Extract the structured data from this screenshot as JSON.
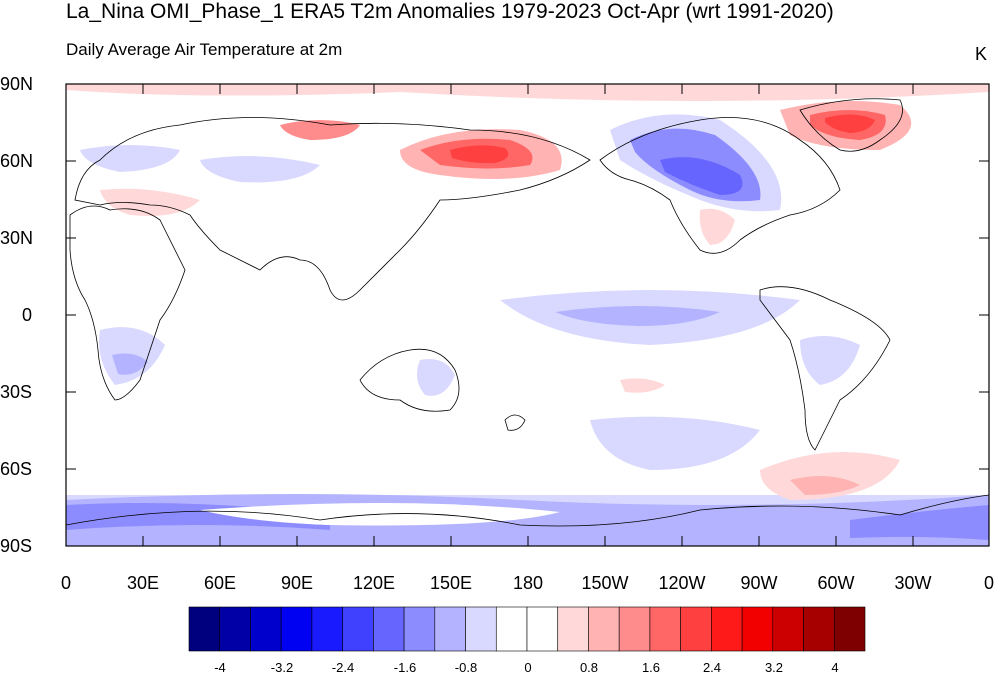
{
  "title": "La_Nina OMI_Phase_1 ERA5 T2m Anomalies 1979-2023 Oct-Apr (wrt 1991-2020)",
  "subtitle": "Daily Average Air Temperature at 2m",
  "units": "K",
  "lat_labels": [
    "90N",
    "60N",
    "30N",
    "0",
    "30S",
    "60S",
    "90S"
  ],
  "lon_labels": [
    "0",
    "30E",
    "60E",
    "90E",
    "120E",
    "150E",
    "180",
    "150W",
    "120W",
    "90W",
    "60W",
    "30W",
    "0"
  ],
  "colorbar": {
    "colors": [
      "#00007f",
      "#0000a6",
      "#0000cc",
      "#0000f2",
      "#1a1aff",
      "#4040ff",
      "#6666ff",
      "#8c8cff",
      "#b3b3ff",
      "#d9d9ff",
      "#ffffff",
      "#ffffff",
      "#ffd9d9",
      "#ffb3b3",
      "#ff8c8c",
      "#ff6666",
      "#ff4040",
      "#ff1a1a",
      "#f20000",
      "#cc0000",
      "#a60000",
      "#7f0000"
    ],
    "tick_labels": [
      "-4",
      "-3.2",
      "-2.4",
      "-1.6",
      "-0.8",
      "0",
      "0.8",
      "1.6",
      "2.4",
      "3.2",
      "4"
    ]
  }
}
